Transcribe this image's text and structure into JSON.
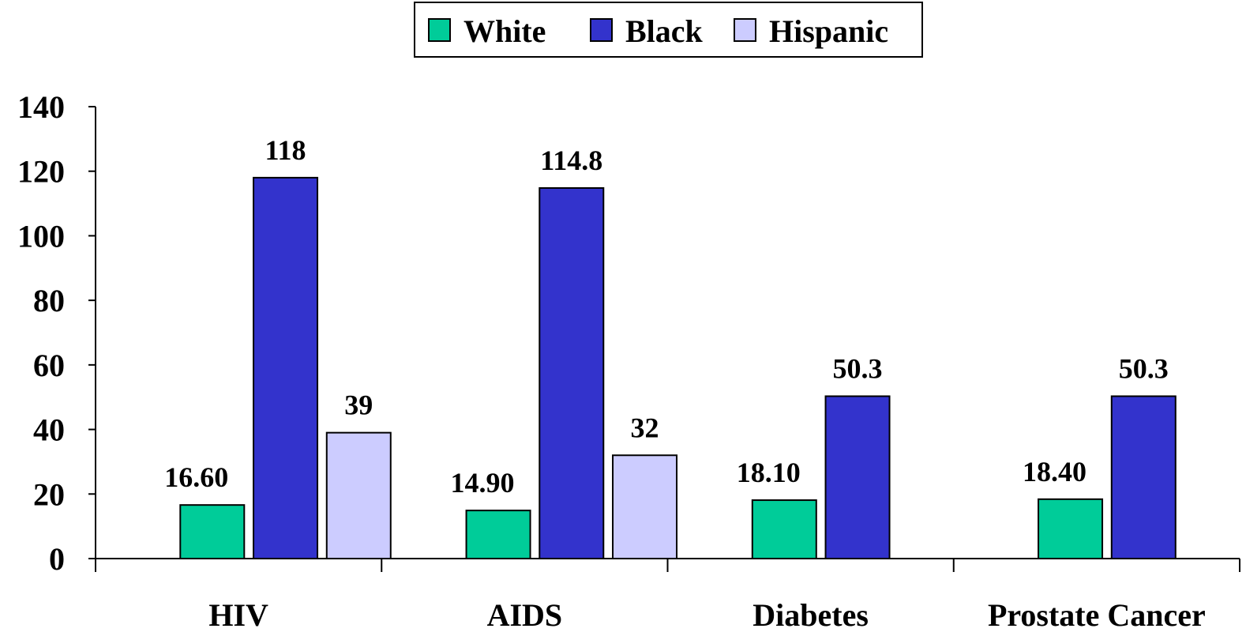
{
  "chart_data": {
    "type": "bar",
    "title": "",
    "xlabel": "",
    "ylabel": "",
    "categories": [
      "HIV",
      "AIDS",
      "Diabetes",
      "Prostate Cancer"
    ],
    "ylim": [
      0,
      140
    ],
    "yticks": [
      "0",
      "20",
      "40",
      "60",
      "80",
      "100",
      "120",
      "140"
    ],
    "grid": false,
    "legend_position": "top-center",
    "series": [
      {
        "name": "White",
        "color": "#00CC99",
        "values": [
          16.6,
          14.9,
          18.1,
          18.4
        ],
        "labels": [
          "16.60",
          "14.90",
          "18.10",
          "18.40"
        ]
      },
      {
        "name": "Black",
        "color": "#3333CC",
        "values": [
          118,
          114.8,
          50.3,
          50.3
        ],
        "labels": [
          "118",
          "114.8",
          "50.3",
          "50.3"
        ]
      },
      {
        "name": "Hispanic",
        "color": "#CCCCFF",
        "values": [
          39,
          32,
          null,
          null
        ],
        "labels": [
          "39",
          "32",
          "",
          ""
        ]
      }
    ]
  }
}
